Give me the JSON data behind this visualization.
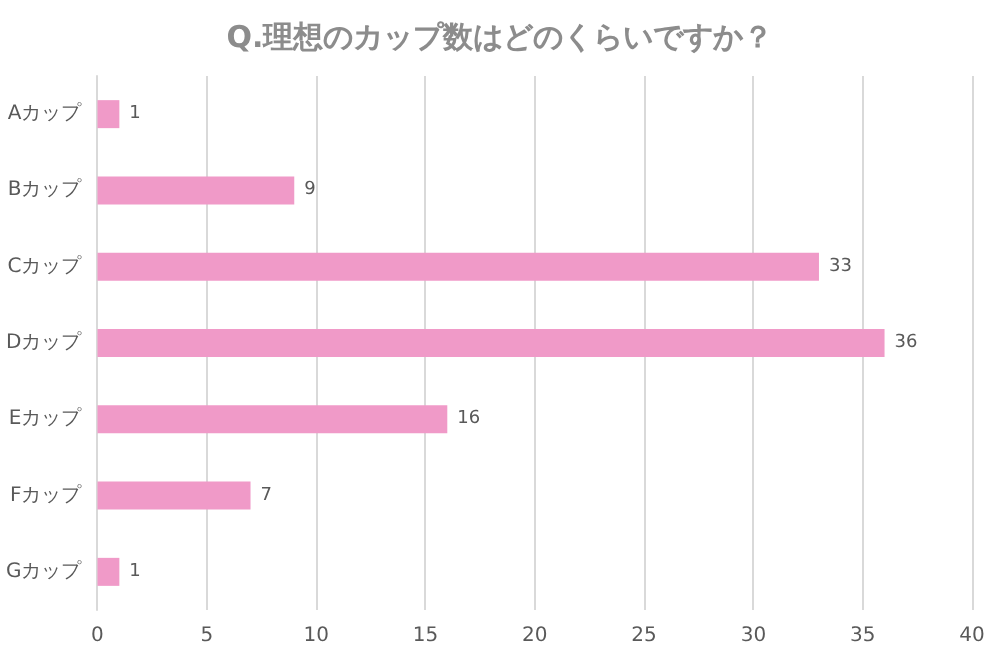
{
  "chart_data": {
    "type": "bar",
    "orientation": "horizontal",
    "title": "Q.理想のカップ数はどのくらいですか？",
    "categories": [
      "Aカップ",
      "Bカップ",
      "Cカップ",
      "Dカップ",
      "Eカップ",
      "Fカップ",
      "Gカップ"
    ],
    "values": [
      1,
      9,
      33,
      36,
      16,
      7,
      1
    ],
    "color": "#f09ac8",
    "xlim": [
      0,
      40
    ],
    "xticks": [
      0,
      5,
      10,
      15,
      20,
      25,
      30,
      35,
      40
    ],
    "grid": "x",
    "data_labels": true
  }
}
